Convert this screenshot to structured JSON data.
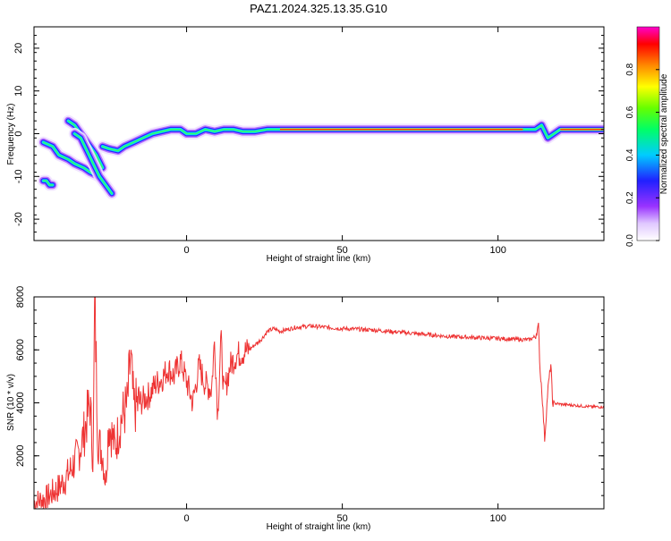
{
  "title": "PAZ1.2024.325.13.35.G10",
  "chart_data": [
    {
      "type": "heatmap",
      "xlabel": "Height of straight line (km)",
      "ylabel": "Frequency (Hz)",
      "xlim": [
        -49,
        134
      ],
      "ylim": [
        -25,
        25
      ],
      "x_ticks": [
        0,
        50,
        100
      ],
      "y_ticks": [
        20,
        10,
        0,
        -10,
        -20
      ],
      "colorbar": {
        "label": "Normalized spectral amplitude",
        "range": [
          0,
          1
        ],
        "ticks": [
          0.0,
          0.2,
          0.4,
          0.6,
          0.8
        ]
      },
      "ridges": [
        {
          "x": [
            -46,
            -43,
            -41,
            -38,
            -36,
            -33,
            -31,
            -28
          ],
          "y": [
            -2,
            -3,
            -5,
            -6,
            -7,
            -8,
            -9,
            -10
          ]
        },
        {
          "x": [
            -46,
            -45,
            -44,
            -43
          ],
          "y": [
            -11,
            -11,
            -12,
            -12
          ]
        },
        {
          "x": [
            -38,
            -36,
            -34,
            -33,
            -31,
            -29,
            -27
          ],
          "y": [
            3,
            2,
            0,
            -1,
            -3,
            -5,
            -8
          ]
        },
        {
          "x": [
            -36,
            -34,
            -32,
            -30,
            -28,
            -26,
            -24
          ],
          "y": [
            0,
            -1,
            -4,
            -7,
            -10,
            -12,
            -14
          ]
        },
        {
          "x": [
            -27,
            -25,
            -22,
            -20,
            -17,
            -14,
            -11,
            -8,
            -5,
            -2,
            0,
            3,
            6,
            9,
            12,
            15,
            18,
            22,
            26,
            30,
            35,
            45,
            60,
            75,
            90,
            100,
            108,
            112,
            114,
            116,
            120,
            134
          ],
          "y": [
            -3,
            -3.5,
            -4,
            -3,
            -2,
            -1,
            0,
            0.5,
            1,
            1,
            0,
            0,
            1,
            0.5,
            1,
            1,
            0.5,
            0.5,
            1,
            1,
            1,
            1,
            1,
            1,
            1,
            1,
            1,
            1,
            2,
            -1,
            1,
            1
          ]
        }
      ]
    },
    {
      "type": "line",
      "xlabel": "Height of straight line (km)",
      "ylabel": "SNR (10 * v/v)",
      "xlim": [
        -49,
        134
      ],
      "ylim": [
        0,
        8000
      ],
      "x_ticks": [
        0,
        50,
        100
      ],
      "y_ticks": [
        2000,
        4000,
        6000,
        8000
      ],
      "series": [
        {
          "color": "#ee3333",
          "points": [
            [
              -49,
              250
            ],
            [
              -45,
              400
            ],
            [
              -41,
              800
            ],
            [
              -38,
              1300
            ],
            [
              -35,
              2000
            ],
            [
              -33,
              2800
            ],
            [
              -31,
              4000
            ],
            [
              -30,
              1700
            ],
            [
              -29.5,
              8000
            ],
            [
              -28.5,
              2600
            ],
            [
              -27,
              2100
            ],
            [
              -26,
              1000
            ],
            [
              -25,
              3300
            ],
            [
              -23,
              2300
            ],
            [
              -21,
              3400
            ],
            [
              -19,
              3900
            ],
            [
              -18,
              5700
            ],
            [
              -17,
              3800
            ],
            [
              -15,
              4000
            ],
            [
              -12,
              4300
            ],
            [
              -10,
              4700
            ],
            [
              -8,
              4900
            ],
            [
              -6,
              5300
            ],
            [
              -4,
              5000
            ],
            [
              -2,
              5600
            ],
            [
              0,
              4800
            ],
            [
              2,
              4000
            ],
            [
              4,
              5400
            ],
            [
              6,
              4700
            ],
            [
              8,
              4500
            ],
            [
              9,
              6400
            ],
            [
              10,
              3500
            ],
            [
              11,
              6500
            ],
            [
              12,
              4300
            ],
            [
              14,
              5400
            ],
            [
              16,
              5800
            ],
            [
              18,
              5900
            ],
            [
              20,
              6000
            ],
            [
              22,
              6200
            ],
            [
              24,
              6400
            ],
            [
              26,
              6700
            ],
            [
              28,
              6800
            ],
            [
              30,
              6700
            ],
            [
              35,
              6850
            ],
            [
              40,
              6900
            ],
            [
              45,
              6850
            ],
            [
              50,
              6800
            ],
            [
              55,
              6780
            ],
            [
              60,
              6750
            ],
            [
              65,
              6700
            ],
            [
              70,
              6650
            ],
            [
              75,
              6600
            ],
            [
              80,
              6550
            ],
            [
              85,
              6500
            ],
            [
              90,
              6480
            ],
            [
              95,
              6450
            ],
            [
              100,
              6430
            ],
            [
              105,
              6400
            ],
            [
              110,
              6380
            ],
            [
              112,
              6500
            ],
            [
              113,
              6900
            ],
            [
              113.5,
              5200
            ],
            [
              114,
              4600
            ],
            [
              115,
              2600
            ],
            [
              116,
              4500
            ],
            [
              117,
              5500
            ],
            [
              117.5,
              4000
            ],
            [
              120,
              3950
            ],
            [
              125,
              3900
            ],
            [
              130,
              3850
            ],
            [
              134,
              3850
            ]
          ]
        }
      ]
    }
  ]
}
